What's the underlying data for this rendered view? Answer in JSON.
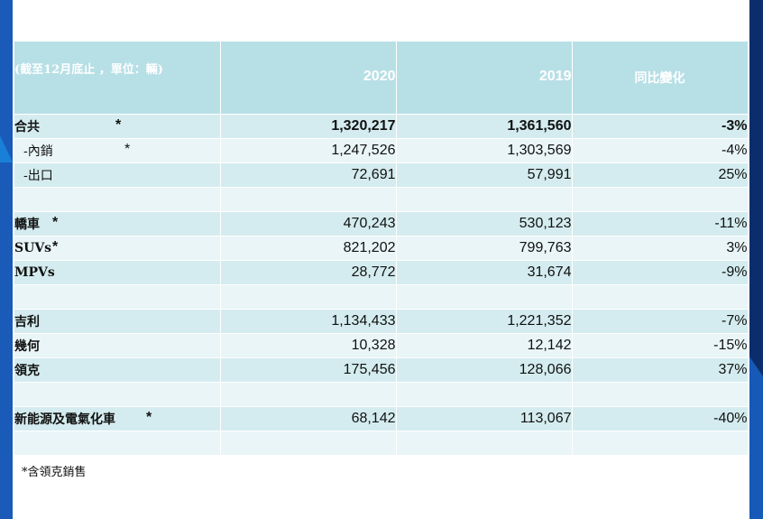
{
  "header": {
    "unit_label": "(截至12月底止 ，單位：輛)",
    "col_2020": "2020",
    "col_2019": "2019",
    "col_yoy": "同比變化"
  },
  "rows": [
    {
      "label": "合共",
      "star": "*",
      "v2020": "1,320,217",
      "v2019": "1,361,560",
      "yoy": "-3%"
    },
    {
      "label": "-內銷",
      "star": "*",
      "v2020": "1,247,526",
      "v2019": "1,303,569",
      "yoy": "-4%"
    },
    {
      "label": "-出口",
      "star": "",
      "v2020": "72,691",
      "v2019": "57,991",
      "yoy": "25%"
    },
    {
      "label": "",
      "star": "",
      "v2020": "",
      "v2019": "",
      "yoy": ""
    },
    {
      "label": "轎車",
      "star": "*",
      "v2020": "470,243",
      "v2019": "530,123",
      "yoy": "-11%"
    },
    {
      "label": "SUVs",
      "star": "*",
      "v2020": "821,202",
      "v2019": "799,763",
      "yoy": "3%"
    },
    {
      "label": "MPVs",
      "star": "",
      "v2020": "28,772",
      "v2019": "31,674",
      "yoy": "-9%"
    },
    {
      "label": "",
      "star": "",
      "v2020": "",
      "v2019": "",
      "yoy": ""
    },
    {
      "label": "吉利",
      "star": "",
      "v2020": "1,134,433",
      "v2019": "1,221,352",
      "yoy": "-7%"
    },
    {
      "label": "幾何",
      "star": "",
      "v2020": "10,328",
      "v2019": "12,142",
      "yoy": "-15%"
    },
    {
      "label": "領克",
      "star": "",
      "v2020": "175,456",
      "v2019": "128,066",
      "yoy": "37%"
    },
    {
      "label": "",
      "star": "",
      "v2020": "",
      "v2019": "",
      "yoy": ""
    },
    {
      "label": "新能源及電氣化車",
      "star": "*",
      "v2020": "68,142",
      "v2019": "113,067",
      "yoy": "-40%"
    },
    {
      "label": "",
      "star": "",
      "v2020": "",
      "v2019": "",
      "yoy": ""
    }
  ],
  "footnote": "*含領克銷售"
}
